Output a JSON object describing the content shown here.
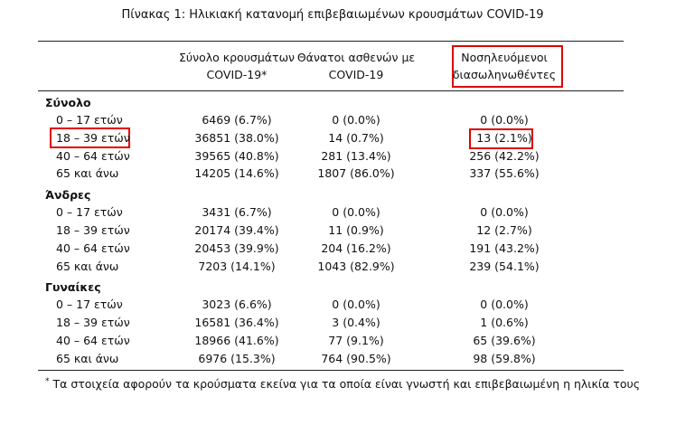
{
  "title": "Πίνακας 1: Ηλικιακή κατανομή επιβεβαιωμένων κρουσμάτων COVID-19",
  "headers": [
    [
      "Σύνολο κρουσμάτων",
      "COVID-19*"
    ],
    [
      "Θάνατοι ασθενών με",
      "COVID-19"
    ],
    [
      "Νοσηλευόμενοι",
      "διασωληνωθέντες"
    ]
  ],
  "sections": [
    {
      "name": "Σύνολο",
      "rows": [
        [
          "0 – 17 ετών",
          "6469 (6.7%)",
          "0 (0.0%)",
          "0 (0.0%)"
        ],
        [
          "18 – 39 ετών",
          "36851 (38.0%)",
          "14 (0.7%)",
          "13 (2.1%)"
        ],
        [
          "40 – 64 ετών",
          "39565 (40.8%)",
          "281 (13.4%)",
          "256 (42.2%)"
        ],
        [
          "65 και άνω",
          "14205 (14.6%)",
          "1807 (86.0%)",
          "337 (55.6%)"
        ]
      ]
    },
    {
      "name": "Άνδρες",
      "rows": [
        [
          "0 – 17 ετών",
          "3431 (6.7%)",
          "0 (0.0%)",
          "0 (0.0%)"
        ],
        [
          "18 – 39 ετών",
          "20174 (39.4%)",
          "11 (0.9%)",
          "12 (2.7%)"
        ],
        [
          "40 – 64 ετών",
          "20453 (39.9%)",
          "204 (16.2%)",
          "191 (43.2%)"
        ],
        [
          "65 και άνω",
          "7203 (14.1%)",
          "1043 (82.9%)",
          "239 (54.1%)"
        ]
      ]
    },
    {
      "name": "Γυναίκες",
      "rows": [
        [
          "0 – 17 ετών",
          "3023 (6.6%)",
          "0 (0.0%)",
          "0 (0.0%)"
        ],
        [
          "18 – 39 ετών",
          "16581 (36.4%)",
          "3 (0.4%)",
          "1 (0.6%)"
        ],
        [
          "40 – 64 ετών",
          "18966 (41.6%)",
          "77 (9.1%)",
          "65 (39.6%)"
        ],
        [
          "65 και άνω",
          "6976 (15.3%)",
          "764 (90.5%)",
          "98 (59.8%)"
        ]
      ]
    }
  ],
  "footnote": {
    "mark": "*",
    "text": "Τα στοιχεία αφορούν τα κρούσματα εκείνα για τα οποία είναι γνωστή και επιβεβαιωμένη η ηλικία τους"
  }
}
